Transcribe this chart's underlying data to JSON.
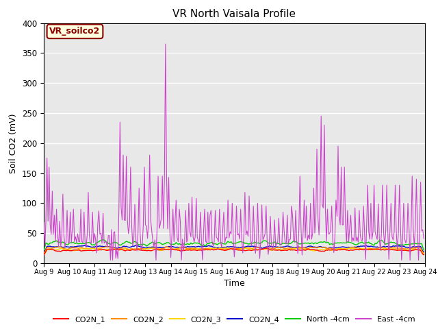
{
  "title": "VR North Vaisala Profile",
  "xlabel": "Time",
  "ylabel": "Soil CO2 (mV)",
  "ylim": [
    0,
    400
  ],
  "x_tick_labels": [
    "Aug 9",
    "Aug 10",
    "Aug 11",
    "Aug 12",
    "Aug 13",
    "Aug 14",
    "Aug 15",
    "Aug 16",
    "Aug 17",
    "Aug 18",
    "Aug 19",
    "Aug 20",
    "Aug 21",
    "Aug 22",
    "Aug 23",
    "Aug 24"
  ],
  "annotation_text": "VR_soilco2",
  "annotation_color": "#8B0000",
  "annotation_bg": "#FFFFE0",
  "series_colors": {
    "CO2N_1": "#FF0000",
    "CO2N_2": "#FF8C00",
    "CO2N_3": "#FFD700",
    "CO2N_4": "#0000CD",
    "North_4cm": "#00CC00",
    "East_4cm": "#CC44CC"
  },
  "bg_color": "#E8E8E8",
  "grid_color": "#FFFFFF",
  "title_fontsize": 11,
  "n_points": 360,
  "legend_items": [
    {
      "label": "CO2N_1",
      "color": "#FF0000"
    },
    {
      "label": "CO2N_2",
      "color": "#FF8C00"
    },
    {
      "label": "CO2N_3",
      "color": "#FFD700"
    },
    {
      "label": "CO2N_4",
      "color": "#0000CD"
    },
    {
      "label": "North -4cm",
      "color": "#00CC00"
    },
    {
      "label": "East -4cm",
      "color": "#CC44CC"
    }
  ]
}
